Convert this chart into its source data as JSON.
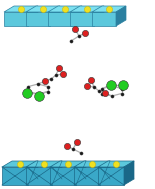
{
  "bg_color": "#ffffff",
  "top_face": "#7de0f0",
  "side_face": "#5cc8dc",
  "dark_face": "#2a80a0",
  "edge_color": "#2a80a0",
  "oct_top": "#5cc8dc",
  "oct_mid": "#3aa8c8",
  "oct_dark": "#1a6888",
  "oct_edge": "#1a6888",
  "yellow": "#f0e020",
  "green": "#22cc22",
  "red": "#dd2020",
  "black": "#1a1a1a",
  "bond": "#b0b0b0",
  "figsize": [
    1.55,
    1.89
  ],
  "dpi": 100
}
